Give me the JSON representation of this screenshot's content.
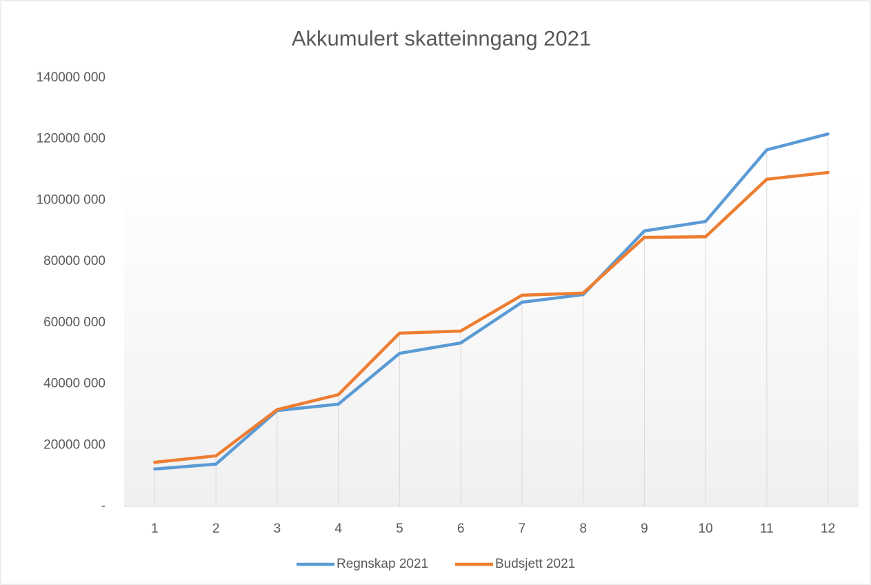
{
  "chart_data": {
    "type": "line",
    "title": "Akkumulert skatteinngang 2021",
    "categories": [
      "1",
      "2",
      "3",
      "4",
      "5",
      "6",
      "7",
      "8",
      "9",
      "10",
      "11",
      "12"
    ],
    "series": [
      {
        "name": "Regnskap 2021",
        "color": "#5b9bd5",
        "values": [
          12200000,
          13800000,
          31300000,
          33400000,
          50000000,
          53400000,
          66700000,
          69200000,
          90000000,
          93100000,
          116500000,
          121700000
        ]
      },
      {
        "name": "Budsjett 2021",
        "color": "#ed7d31",
        "values": [
          14400000,
          16500000,
          31600000,
          36500000,
          56600000,
          57300000,
          69000000,
          69700000,
          87900000,
          88100000,
          106900000,
          109100000
        ]
      }
    ],
    "ylim": [
      0,
      140000000
    ],
    "yticks": [
      {
        "value": 0,
        "label": "-"
      },
      {
        "value": 20000000,
        "label": "20000 000"
      },
      {
        "value": 40000000,
        "label": "40000 000"
      },
      {
        "value": 60000000,
        "label": "60000 000"
      },
      {
        "value": 80000000,
        "label": "80000 000"
      },
      {
        "value": 100000000,
        "label": "100000 000"
      },
      {
        "value": 120000000,
        "label": "120000 000"
      },
      {
        "value": 140000000,
        "label": "140000 000"
      }
    ],
    "legend": "bottom"
  }
}
